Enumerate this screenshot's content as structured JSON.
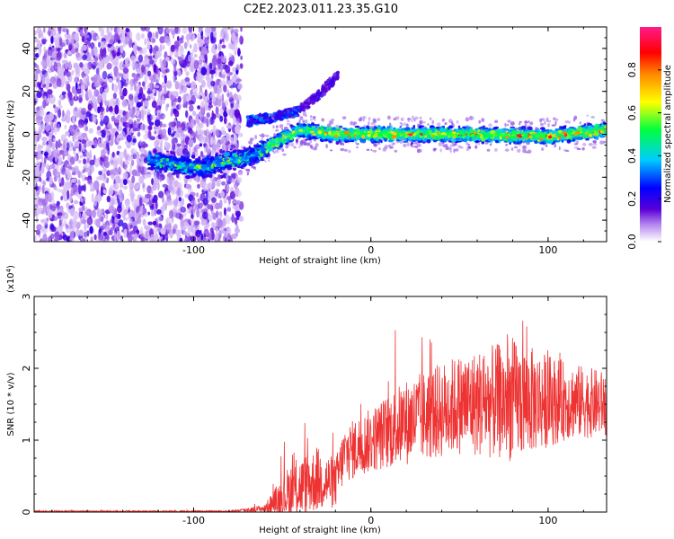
{
  "title": "C2E2.2023.011.23.35.G10",
  "chart_data": [
    {
      "type": "heatmap",
      "xlabel": "Height of straight line (km)",
      "ylabel": "Frequency (Hz)",
      "xlim": [
        -190,
        133
      ],
      "ylim": [
        -50,
        50
      ],
      "xticks": [
        -100,
        0,
        100
      ],
      "yticks": [
        -40,
        -20,
        0,
        20,
        40
      ],
      "colorbar": {
        "label": "Normalized spectral amplitude",
        "range": [
          0,
          1
        ],
        "ticks": [
          0.0,
          0.2,
          0.4,
          0.6,
          0.8
        ]
      },
      "noise_region_x": [
        -190,
        -73
      ],
      "ridge": [
        {
          "x": -125,
          "y": -12
        },
        {
          "x": -95,
          "y": -16
        },
        {
          "x": -80,
          "y": -12
        },
        {
          "x": -70,
          "y": -11
        },
        {
          "x": -60,
          "y": -7
        },
        {
          "x": -50,
          "y": -2
        },
        {
          "x": -40,
          "y": 2
        },
        {
          "x": -30,
          "y": 1
        },
        {
          "x": -20,
          "y": 0
        },
        {
          "x": 0,
          "y": 0
        },
        {
          "x": 50,
          "y": 0
        },
        {
          "x": 100,
          "y": -1
        },
        {
          "x": 133,
          "y": 2
        }
      ],
      "upper_branch": [
        {
          "x": -70,
          "y": 6
        },
        {
          "x": -55,
          "y": 8
        },
        {
          "x": -40,
          "y": 11
        },
        {
          "x": -30,
          "y": 18
        },
        {
          "x": -18,
          "y": 28
        }
      ],
      "grid": false
    },
    {
      "type": "line",
      "xlabel": "Height of straight line (km)",
      "ylabel": "SNR (10 * v/v)",
      "y_multiplier": "(x10",
      "y_multiplier_exp": "4",
      "y_multiplier_close": ")",
      "xlim": [
        -190,
        133
      ],
      "ylim": [
        0,
        3
      ],
      "xticks": [
        -100,
        0,
        100
      ],
      "yticks": [
        0,
        1,
        2,
        3
      ],
      "color": "#ee3333",
      "envelope": [
        {
          "x": -190,
          "mean": 0.01,
          "amp": 0.01
        },
        {
          "x": -80,
          "mean": 0.01,
          "amp": 0.01
        },
        {
          "x": -60,
          "mean": 0.05,
          "amp": 0.05
        },
        {
          "x": -45,
          "mean": 0.3,
          "amp": 0.4
        },
        {
          "x": -30,
          "mean": 0.45,
          "amp": 0.45
        },
        {
          "x": -20,
          "mean": 0.4,
          "amp": 0.35
        },
        {
          "x": -15,
          "mean": 0.8,
          "amp": 0.4
        },
        {
          "x": 0,
          "mean": 1.0,
          "amp": 0.45
        },
        {
          "x": 20,
          "mean": 1.25,
          "amp": 0.6
        },
        {
          "x": 50,
          "mean": 1.5,
          "amp": 0.7
        },
        {
          "x": 80,
          "mean": 1.55,
          "amp": 0.85
        },
        {
          "x": 110,
          "mean": 1.55,
          "amp": 0.55
        },
        {
          "x": 133,
          "mean": 1.5,
          "amp": 0.45
        }
      ],
      "grid": false
    }
  ]
}
